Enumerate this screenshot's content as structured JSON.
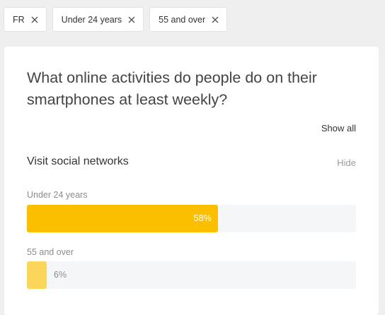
{
  "filters": [
    {
      "label": "FR"
    },
    {
      "label": "Under 24 years"
    },
    {
      "label": "55 and over"
    }
  ],
  "card": {
    "question": "What online activities do people do on their smartphones at least weekly?",
    "show_all_label": "Show all",
    "activity": {
      "title": "Visit social networks",
      "hide_label": "Hide",
      "groups": [
        {
          "label": "Under 24 years",
          "value": 58,
          "value_label": "58%",
          "color": "#fbbf00"
        },
        {
          "label": "55 and over",
          "value": 6,
          "value_label": "6%",
          "color": "#fcd55b"
        }
      ]
    }
  },
  "icons": {
    "chip_close": "close-icon"
  }
}
